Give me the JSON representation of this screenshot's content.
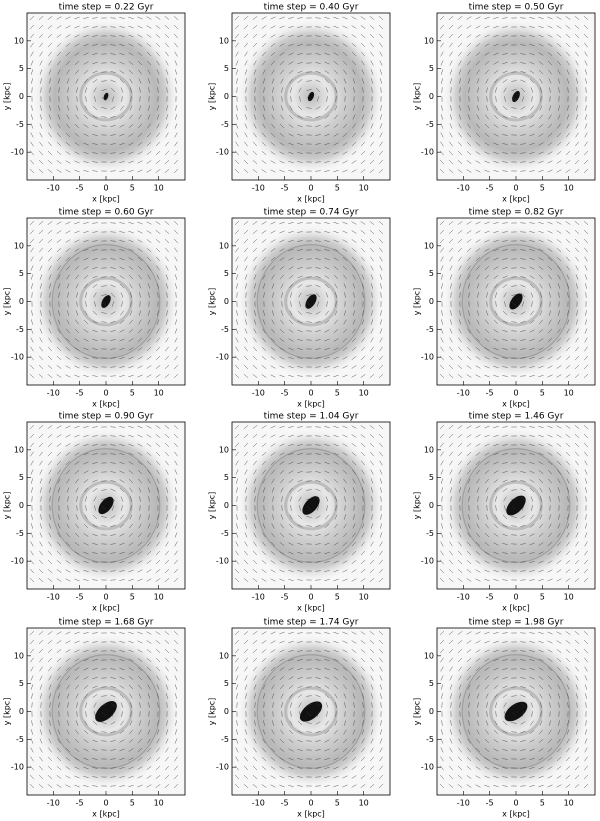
{
  "panels": [
    {
      "title": "time step = 0.22 Gyr"
    },
    {
      "title": "time step = 0.40 Gyr"
    },
    {
      "title": "time step = 0.50 Gyr"
    },
    {
      "title": "time step = 0.60 Gyr"
    },
    {
      "title": "time step = 0.74 Gyr"
    },
    {
      "title": "time step = 0.82 Gyr"
    },
    {
      "title": "time step = 0.90 Gyr"
    },
    {
      "title": "time step = 1.04 Gyr"
    },
    {
      "title": "time step = 1.46 Gyr"
    },
    {
      "title": "time step = 1.68 Gyr"
    },
    {
      "title": "time step = 1.74 Gyr"
    },
    {
      "title": "time step = 1.98 Gyr"
    }
  ],
  "xlabel": "x [kpc]",
  "ylabel": "y [kpc]",
  "xlim": [
    -15,
    15
  ],
  "ylim": [
    -15,
    15
  ],
  "xticks": [
    -10,
    -5,
    0,
    5,
    10
  ],
  "yticks": [
    -10,
    -5,
    0,
    5,
    10
  ]
}
